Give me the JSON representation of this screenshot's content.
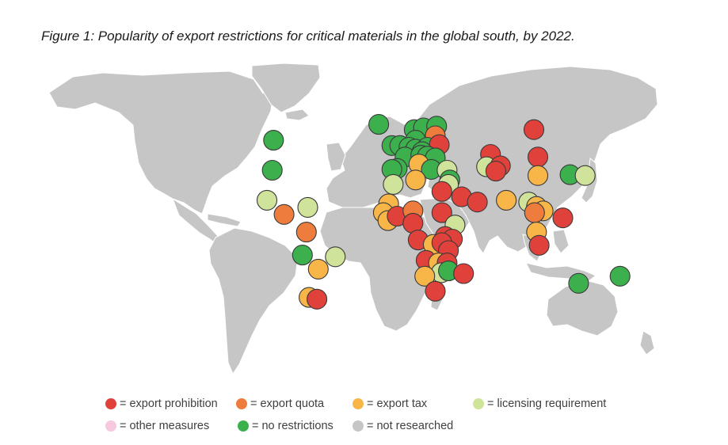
{
  "figure": {
    "title": "Figure 1: Popularity of export restrictions for critical materials in the global south, by 2022."
  },
  "colors": {
    "export_prohibition": "#e0413a",
    "export_quota": "#ee7d3d",
    "export_tax": "#f8b548",
    "licensing_requirement": "#cfe39a",
    "other_measures": "#f6c9df",
    "no_restrictions": "#3bb04d",
    "not_researched": "#c6c6c6"
  },
  "legend": [
    {
      "key": "export_prohibition",
      "label": "= export prohibition"
    },
    {
      "key": "export_quota",
      "label": "= export quota"
    },
    {
      "key": "export_tax",
      "label": "= export tax"
    },
    {
      "key": "licensing_requirement",
      "label": "= licensing requirement"
    },
    {
      "key": "other_measures",
      "label": "= other measures"
    },
    {
      "key": "no_restrictions",
      "label": "= no restrictions"
    },
    {
      "key": "not_researched",
      "label": "= not researched"
    }
  ],
  "markers": [
    {
      "region": "Canada",
      "lon": -98,
      "lat": 56,
      "category": "no_restrictions"
    },
    {
      "region": "United States",
      "lon": -99,
      "lat": 39,
      "category": "no_restrictions"
    },
    {
      "region": "Mexico",
      "lon": -103,
      "lat": 22,
      "category": "licensing_requirement"
    },
    {
      "region": "Guatemala",
      "lon": -90,
      "lat": 14,
      "category": "export_quota"
    },
    {
      "region": "Dominican Republic",
      "lon": -72,
      "lat": 18,
      "category": "licensing_requirement"
    },
    {
      "region": "Colombia",
      "lon": -73,
      "lat": 4,
      "category": "export_quota"
    },
    {
      "region": "Peru",
      "lon": -76,
      "lat": -9,
      "category": "no_restrictions"
    },
    {
      "region": "Brazil",
      "lon": -51,
      "lat": -10,
      "category": "licensing_requirement"
    },
    {
      "region": "Bolivia",
      "lon": -64,
      "lat": -17,
      "category": "export_tax"
    },
    {
      "region": "Chile",
      "lon": -71,
      "lat": -33,
      "category": "export_tax"
    },
    {
      "region": "Argentina",
      "lon": -65,
      "lat": -34,
      "category": "export_prohibition"
    },
    {
      "region": "Iceland",
      "lon": -18,
      "lat": 65,
      "category": "no_restrictions"
    },
    {
      "region": "Norway",
      "lon": 9,
      "lat": 62,
      "category": "no_restrictions"
    },
    {
      "region": "Sweden",
      "lon": 16,
      "lat": 63,
      "category": "no_restrictions"
    },
    {
      "region": "Finland",
      "lon": 26,
      "lat": 64,
      "category": "no_restrictions"
    },
    {
      "region": "Ireland",
      "lon": -8,
      "lat": 53,
      "category": "no_restrictions"
    },
    {
      "region": "United Kingdom",
      "lon": -2,
      "lat": 53,
      "category": "no_restrictions"
    },
    {
      "region": "Denmark",
      "lon": 10,
      "lat": 56,
      "category": "no_restrictions"
    },
    {
      "region": "Estonia",
      "lon": 25,
      "lat": 58.5,
      "category": "export_quota"
    },
    {
      "region": "Netherlands",
      "lon": 5,
      "lat": 52,
      "category": "no_restrictions"
    },
    {
      "region": "Germany",
      "lon": 10,
      "lat": 51,
      "category": "no_restrictions"
    },
    {
      "region": "Poland",
      "lon": 19,
      "lat": 52,
      "category": "no_restrictions"
    },
    {
      "region": "Belarus",
      "lon": 28,
      "lat": 53.5,
      "category": "export_prohibition"
    },
    {
      "region": "France",
      "lon": 2,
      "lat": 46.5,
      "category": "no_restrictions"
    },
    {
      "region": "Czechia",
      "lon": 15,
      "lat": 49.5,
      "category": "no_restrictions"
    },
    {
      "region": "Austria",
      "lon": 14,
      "lat": 47.5,
      "category": "no_restrictions"
    },
    {
      "region": "Hungary",
      "lon": 19,
      "lat": 47,
      "category": "no_restrictions"
    },
    {
      "region": "Romania",
      "lon": 25,
      "lat": 46,
      "category": "no_restrictions"
    },
    {
      "region": "Spain",
      "lon": -4,
      "lat": 40,
      "category": "no_restrictions"
    },
    {
      "region": "Portugal",
      "lon": -8,
      "lat": 39.5,
      "category": "no_restrictions"
    },
    {
      "region": "Italy",
      "lon": 12.5,
      "lat": 42.5,
      "category": "export_tax"
    },
    {
      "region": "Greece",
      "lon": 22,
      "lat": 39.5,
      "category": "no_restrictions"
    },
    {
      "region": "Turkey",
      "lon": 34,
      "lat": 39,
      "category": "licensing_requirement"
    },
    {
      "region": "Morocco",
      "lon": -7,
      "lat": 31,
      "category": "licensing_requirement"
    },
    {
      "region": "Tunisia",
      "lon": 10,
      "lat": 33.5,
      "category": "export_tax"
    },
    {
      "region": "Lebanon",
      "lon": 36,
      "lat": 33.5,
      "category": "no_restrictions"
    },
    {
      "region": "Israel",
      "lon": 35,
      "lat": 31,
      "category": "licensing_requirement"
    },
    {
      "region": "Egypt",
      "lon": 30,
      "lat": 27,
      "category": "export_prohibition"
    },
    {
      "region": "Saudi Arabia",
      "lon": 45,
      "lat": 24,
      "category": "export_prohibition"
    },
    {
      "region": "Oman",
      "lon": 57,
      "lat": 21,
      "category": "export_prohibition"
    },
    {
      "region": "Kazakhstan",
      "lon": 67,
      "lat": 48,
      "category": "export_prohibition"
    },
    {
      "region": "Russia",
      "lon": 100,
      "lat": 62,
      "category": "export_prohibition"
    },
    {
      "region": "Uzbekistan",
      "lon": 64,
      "lat": 41,
      "category": "licensing_requirement"
    },
    {
      "region": "Kyrgyzstan",
      "lon": 74.5,
      "lat": 41.5,
      "category": "export_prohibition"
    },
    {
      "region": "Tajikistan",
      "lon": 71,
      "lat": 38.5,
      "category": "export_prohibition"
    },
    {
      "region": "Mongolia",
      "lon": 103,
      "lat": 46.5,
      "category": "export_prohibition"
    },
    {
      "region": "China",
      "lon": 103,
      "lat": 36,
      "category": "export_tax"
    },
    {
      "region": "South Korea",
      "lon": 127.5,
      "lat": 36.5,
      "category": "no_restrictions"
    },
    {
      "region": "Japan",
      "lon": 139,
      "lat": 36,
      "category": "licensing_requirement"
    },
    {
      "region": "India",
      "lon": 79,
      "lat": 22,
      "category": "export_tax"
    },
    {
      "region": "Myanmar",
      "lon": 96,
      "lat": 21,
      "category": "licensing_requirement"
    },
    {
      "region": "Laos",
      "lon": 102,
      "lat": 18.5,
      "category": "export_tax"
    },
    {
      "region": "Vietnam",
      "lon": 107,
      "lat": 16,
      "category": "export_tax"
    },
    {
      "region": "Thailand",
      "lon": 100.5,
      "lat": 15,
      "category": "export_quota"
    },
    {
      "region": "Philippines",
      "lon": 122,
      "lat": 12,
      "category": "export_prohibition"
    },
    {
      "region": "Malaysia",
      "lon": 102,
      "lat": 4,
      "category": "export_tax"
    },
    {
      "region": "Indonesia",
      "lon": 104,
      "lat": -3.5,
      "category": "export_prohibition"
    },
    {
      "region": "Australia",
      "lon": 134,
      "lat": -25,
      "category": "no_restrictions"
    },
    {
      "region": "New Caledonia",
      "lon": 165.5,
      "lat": -21,
      "category": "no_restrictions"
    },
    {
      "region": "Mauritania",
      "lon": -10.5,
      "lat": 20,
      "category": "export_tax"
    },
    {
      "region": "Senegal",
      "lon": -14.5,
      "lat": 15,
      "category": "export_tax"
    },
    {
      "region": "Guinea",
      "lon": -11,
      "lat": 10.5,
      "category": "export_tax"
    },
    {
      "region": "Mali",
      "lon": -4,
      "lat": 13,
      "category": "export_prohibition"
    },
    {
      "region": "Niger",
      "lon": 8,
      "lat": 16,
      "category": "export_quota"
    },
    {
      "region": "Nigeria",
      "lon": 8,
      "lat": 9,
      "category": "export_prohibition"
    },
    {
      "region": "Sudan",
      "lon": 30,
      "lat": 15,
      "category": "export_prohibition"
    },
    {
      "region": "Ethiopia",
      "lon": 40,
      "lat": 8,
      "category": "licensing_requirement"
    },
    {
      "region": "Uganda",
      "lon": 32.5,
      "lat": 1.5,
      "category": "export_prohibition"
    },
    {
      "region": "Kenya",
      "lon": 38,
      "lat": 0,
      "category": "export_prohibition"
    },
    {
      "region": "Gabon",
      "lon": 12,
      "lat": -0.5,
      "category": "export_prohibition"
    },
    {
      "region": "DR Congo",
      "lon": 23.5,
      "lat": -3,
      "category": "export_tax"
    },
    {
      "region": "Rwanda",
      "lon": 30,
      "lat": -2,
      "category": "export_prohibition"
    },
    {
      "region": "Tanzania",
      "lon": 35,
      "lat": -6.5,
      "category": "export_prohibition"
    },
    {
      "region": "Angola",
      "lon": 18,
      "lat": -12,
      "category": "export_prohibition"
    },
    {
      "region": "Zambia",
      "lon": 27.5,
      "lat": -13.5,
      "category": "export_tax"
    },
    {
      "region": "Malawi",
      "lon": 34,
      "lat": -13.5,
      "category": "export_prohibition"
    },
    {
      "region": "Zimbabwe",
      "lon": 29.5,
      "lat": -19,
      "category": "licensing_requirement"
    },
    {
      "region": "Mozambique",
      "lon": 35,
      "lat": -18,
      "category": "no_restrictions"
    },
    {
      "region": "Namibia",
      "lon": 17,
      "lat": -21,
      "category": "export_tax"
    },
    {
      "region": "Madagascar",
      "lon": 46.5,
      "lat": -19.5,
      "category": "export_prohibition"
    },
    {
      "region": "South Africa",
      "lon": 25,
      "lat": -29.5,
      "category": "export_prohibition"
    }
  ]
}
